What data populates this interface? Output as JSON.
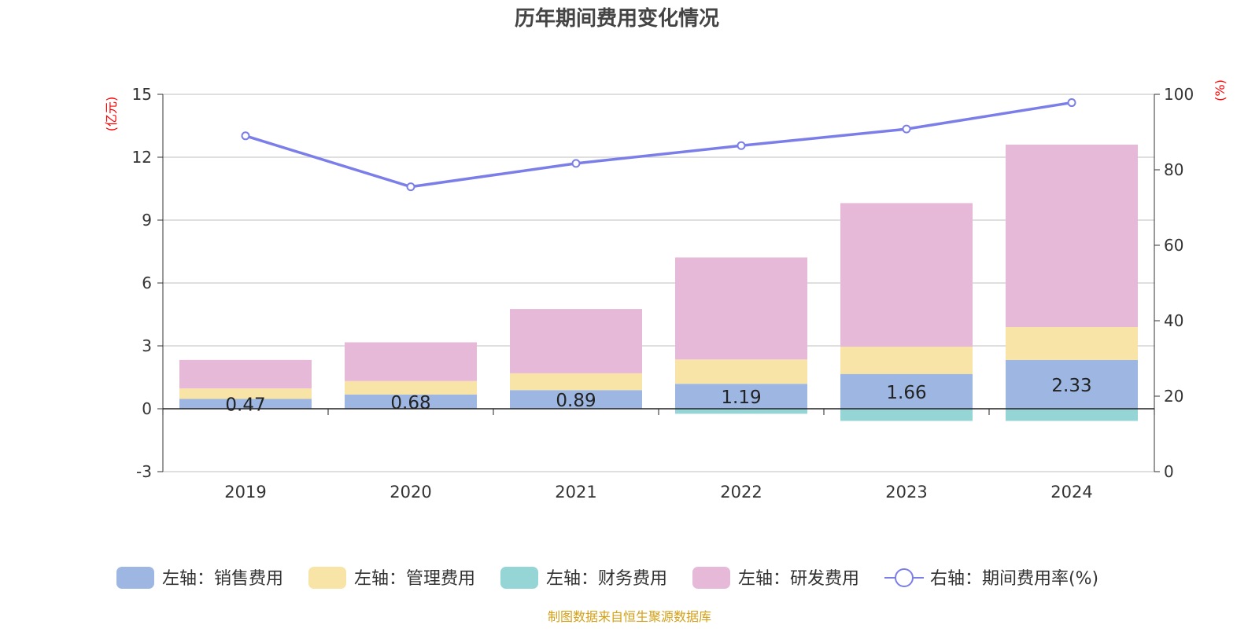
{
  "chart_data": {
    "type": "bar",
    "title": "历年期间费用变化情况",
    "left_unit": "(亿元)",
    "right_unit": "(%)",
    "categories": [
      "2019",
      "2020",
      "2021",
      "2022",
      "2023",
      "2024"
    ],
    "left_axis": {
      "ylim": [
        -3,
        15
      ],
      "ticks": [
        -3,
        0,
        3,
        6,
        9,
        12,
        15
      ]
    },
    "right_axis": {
      "ylim": [
        0,
        100
      ],
      "ticks": [
        0,
        20,
        40,
        60,
        80,
        100
      ]
    },
    "series": [
      {
        "name": "左轴：销售费用",
        "kind": "bar",
        "axis": "left",
        "color": "#9db7e2",
        "values": [
          0.47,
          0.68,
          0.89,
          1.19,
          1.66,
          2.33
        ],
        "show_labels": true
      },
      {
        "name": "左轴：管理费用",
        "kind": "bar",
        "axis": "left",
        "color": "#f8e4a6",
        "values": [
          0.5,
          0.64,
          0.8,
          1.16,
          1.3,
          1.57
        ],
        "show_labels": false
      },
      {
        "name": "左轴：财务费用",
        "kind": "bar",
        "axis": "left",
        "color": "#95d5d6",
        "values": [
          0.0,
          0.0,
          0.0,
          -0.24,
          -0.58,
          -0.58
        ],
        "show_labels": false
      },
      {
        "name": "左轴：研发费用",
        "kind": "bar",
        "axis": "left",
        "color": "#e7b9d9",
        "values": [
          1.36,
          1.85,
          3.07,
          4.87,
          6.85,
          8.7
        ],
        "show_labels": false
      },
      {
        "name": "右轴：期间费用率(%)",
        "kind": "line",
        "axis": "right",
        "color": "#7b7ee8",
        "values": [
          89.0,
          75.5,
          81.7,
          86.4,
          90.8,
          97.8
        ]
      }
    ]
  },
  "footer": {
    "source": "制图数据来自恒生聚源数据库"
  }
}
